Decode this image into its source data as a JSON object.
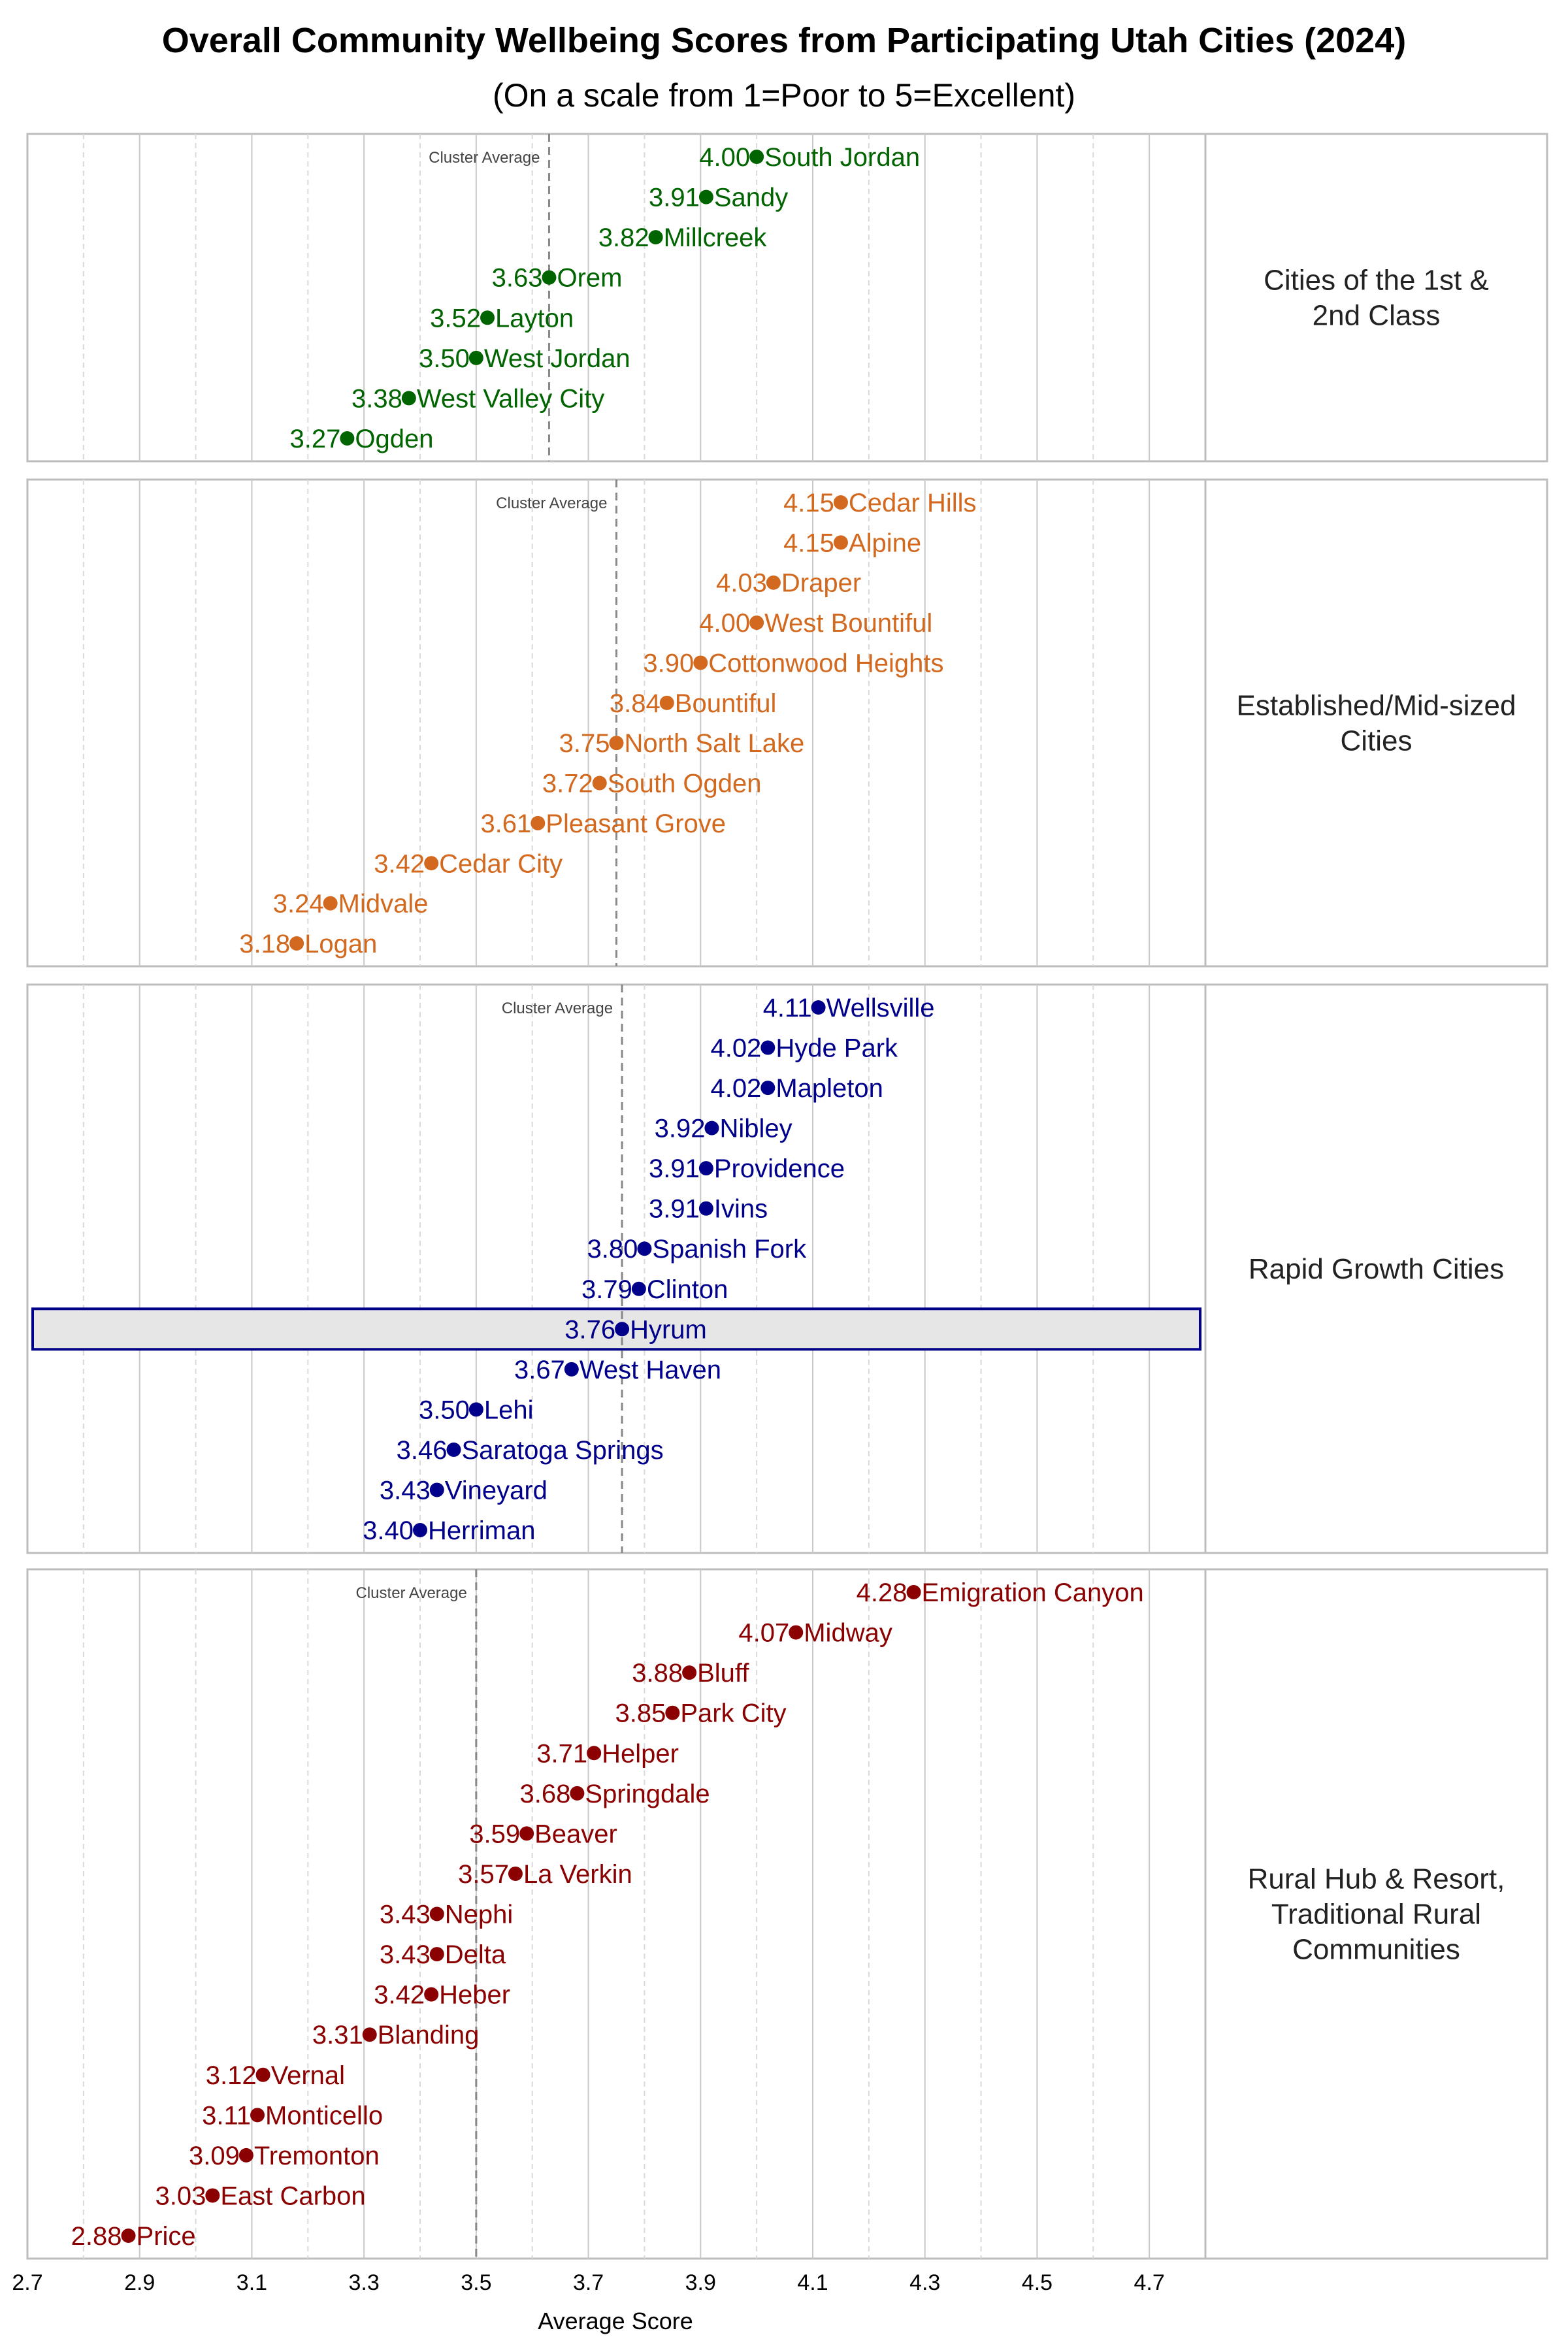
{
  "chart_data": {
    "type": "scatter",
    "title": "Overall Community Wellbeing Scores from Participating Utah Cities (2024)",
    "subtitle": "(On a scale from 1=Poor to 5=Excellent)",
    "xlabel": "Average Score",
    "xlim": [
      2.7,
      4.8
    ],
    "xticks": [
      "2.7",
      "2.9",
      "3.1",
      "3.3",
      "3.5",
      "3.7",
      "3.9",
      "4.1",
      "4.3",
      "4.5",
      "4.7"
    ],
    "grid": true,
    "reference_line_label": "Cluster Average",
    "highlighted_city": "Hyrum",
    "highlight_border_color": "#00008b",
    "panels": [
      {
        "name": "Cities of the 1st & 2nd Class",
        "color": "#006400",
        "cluster_average": 3.63,
        "cities": [
          [
            "South Jordan",
            4.0
          ],
          [
            "Sandy",
            3.91
          ],
          [
            "Millcreek",
            3.82
          ],
          [
            "Orem",
            3.63
          ],
          [
            "Layton",
            3.52
          ],
          [
            "West Jordan",
            3.5
          ],
          [
            "West Valley City",
            3.38
          ],
          [
            "Ogden",
            3.27
          ]
        ]
      },
      {
        "name": "Established/Mid-sized Cities",
        "color": "#d2691e",
        "cluster_average": 3.75,
        "cities": [
          [
            "Cedar Hills",
            4.15
          ],
          [
            "Alpine",
            4.15
          ],
          [
            "Draper",
            4.03
          ],
          [
            "West Bountiful",
            4.0
          ],
          [
            "Cottonwood Heights",
            3.9
          ],
          [
            "Bountiful",
            3.84
          ],
          [
            "North Salt Lake",
            3.75
          ],
          [
            "South Ogden",
            3.72
          ],
          [
            "Pleasant Grove",
            3.61
          ],
          [
            "Cedar City",
            3.42
          ],
          [
            "Midvale",
            3.24
          ],
          [
            "Logan",
            3.18
          ]
        ]
      },
      {
        "name": "Rapid Growth Cities",
        "color": "#00008b",
        "cluster_average": 3.76,
        "cities": [
          [
            "Wellsville",
            4.11
          ],
          [
            "Hyde Park",
            4.02
          ],
          [
            "Mapleton",
            4.02
          ],
          [
            "Nibley",
            3.92
          ],
          [
            "Providence",
            3.91
          ],
          [
            "Ivins",
            3.91
          ],
          [
            "Spanish Fork",
            3.8
          ],
          [
            "Clinton",
            3.79
          ],
          [
            "Hyrum",
            3.76
          ],
          [
            "West Haven",
            3.67
          ],
          [
            "Lehi",
            3.5
          ],
          [
            "Saratoga Springs",
            3.46
          ],
          [
            "Vineyard",
            3.43
          ],
          [
            "Herriman",
            3.4
          ]
        ]
      },
      {
        "name": "Rural Hub & Resort, Traditional Rural Communities",
        "color": "#8b0000",
        "cluster_average": 3.5,
        "cities": [
          [
            "Emigration Canyon",
            4.28
          ],
          [
            "Midway",
            4.07
          ],
          [
            "Bluff",
            3.88
          ],
          [
            "Park City",
            3.85
          ],
          [
            "Helper",
            3.71
          ],
          [
            "Springdale",
            3.68
          ],
          [
            "Beaver",
            3.59
          ],
          [
            "La Verkin",
            3.57
          ],
          [
            "Nephi",
            3.43
          ],
          [
            "Delta",
            3.43
          ],
          [
            "Heber",
            3.42
          ],
          [
            "Blanding",
            3.31
          ],
          [
            "Vernal",
            3.12
          ],
          [
            "Monticello",
            3.11
          ],
          [
            "Tremonton",
            3.09
          ],
          [
            "East Carbon",
            3.03
          ],
          [
            "Price",
            2.88
          ]
        ]
      }
    ],
    "panel_label_lines": [
      [
        "Cities of the 1st &",
        "2nd Class"
      ],
      [
        "Established/Mid-sized",
        "Cities"
      ],
      [
        "Rapid Growth Cities"
      ],
      [
        "Rural Hub & Resort,",
        "Traditional Rural",
        "Communities"
      ]
    ]
  }
}
